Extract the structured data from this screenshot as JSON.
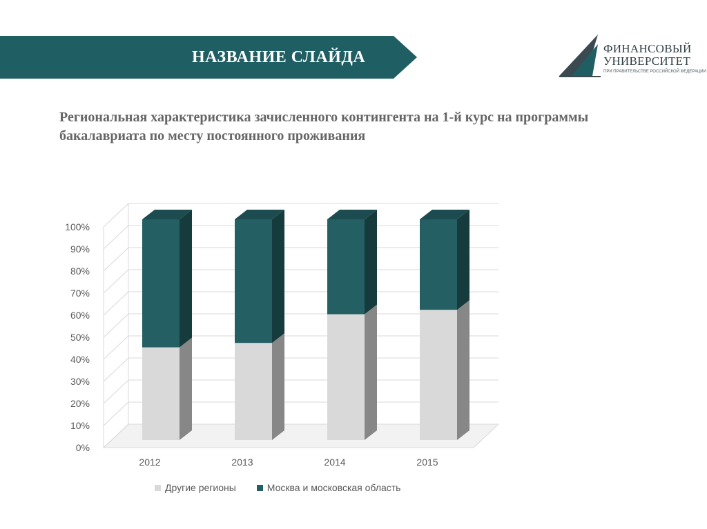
{
  "header": {
    "slide_title": "НАЗВАНИЕ СЛАЙДА",
    "banner_color": "#1f5f63"
  },
  "logo": {
    "line1": "ФИНАНСОВЫЙ",
    "line2": "УНИВЕРСИТЕТ",
    "line3": "ПРИ ПРАВИТЕЛЬСТВЕ РОССИЙСКОЙ ФЕДЕРАЦИИ"
  },
  "subtitle": "Региональная характеристика зачисленного контингента на 1-й  курс на программы бакалавриата по месту постоянного проживания",
  "chart_data": {
    "type": "bar",
    "stacked": true,
    "percent_stacked": true,
    "three_d": true,
    "categories": [
      "2012",
      "2013",
      "2014",
      "2015"
    ],
    "series": [
      {
        "name": "Другие регионы",
        "values": [
          42,
          44,
          57,
          59
        ],
        "color": "#d9d9d9"
      },
      {
        "name": "Москва и московская область",
        "values": [
          58,
          56,
          43,
          41
        ],
        "color": "#235f63"
      }
    ],
    "ylim": [
      0,
      100
    ],
    "yticks": [
      "0%",
      "10%",
      "20%",
      "30%",
      "40%",
      "50%",
      "60%",
      "70%",
      "80%",
      "90%",
      "100%"
    ],
    "grid": true,
    "legend": "bottom"
  }
}
